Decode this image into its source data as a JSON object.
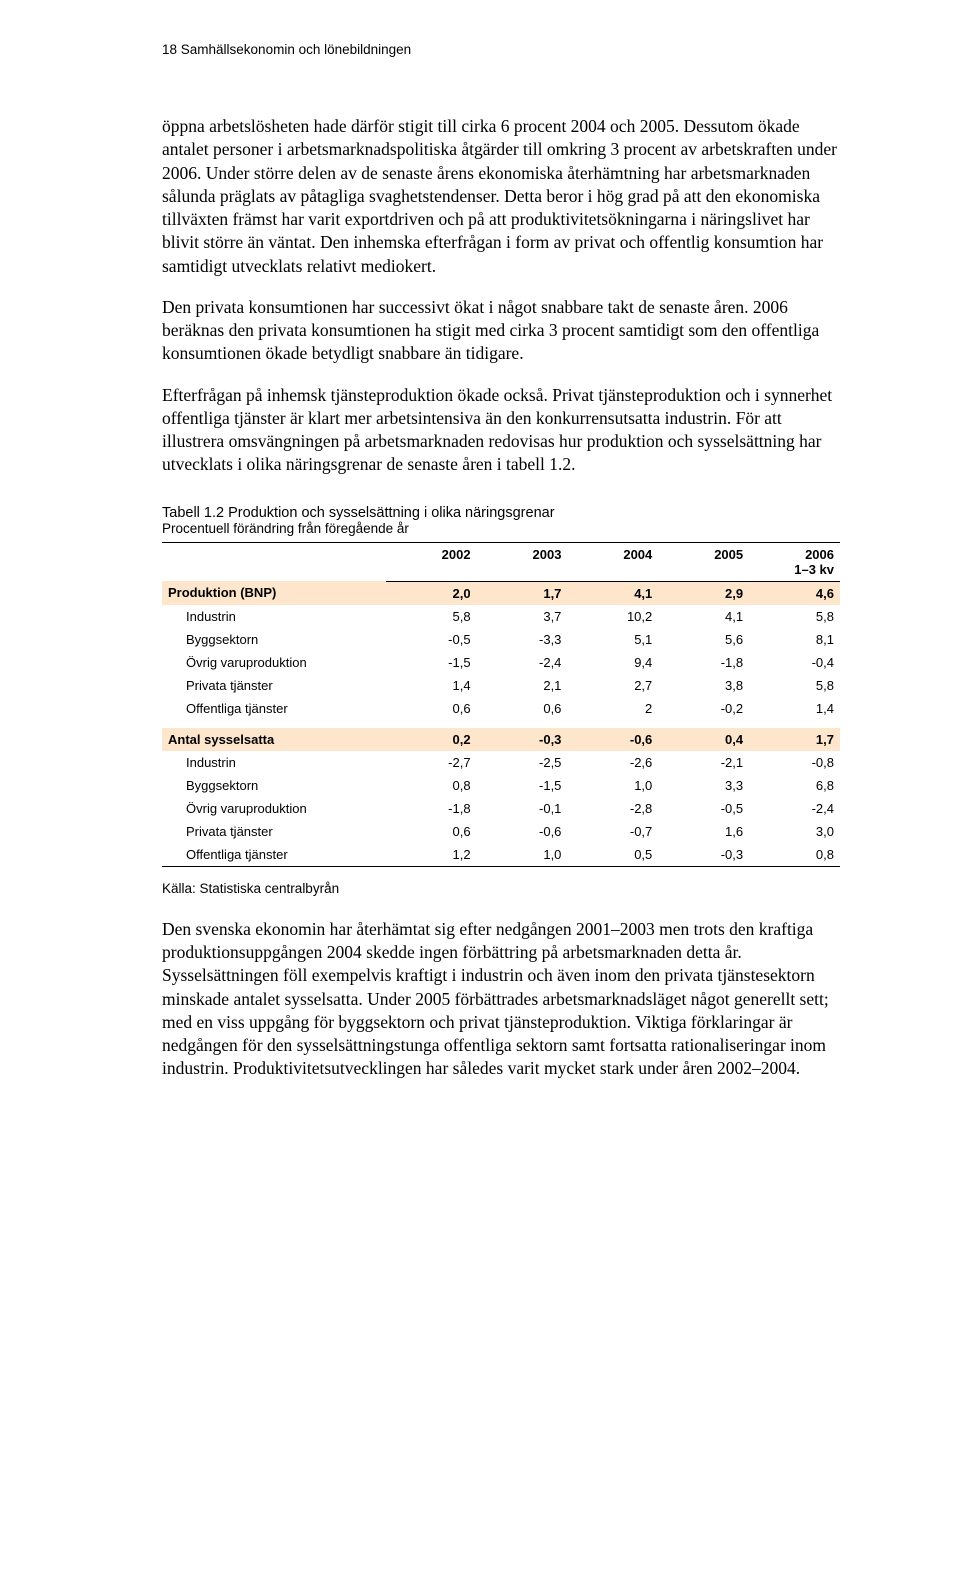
{
  "header": "18  Samhällsekonomin och lönebildningen",
  "paragraphs": {
    "p1": "öppna arbetslösheten hade därför stigit till cirka 6 procent 2004 och 2005. Dessutom ökade antalet personer i arbetsmarknadspolitiska åtgärder till omkring 3 procent av arbetskraften under 2006. Under större delen av de senaste årens ekonomiska återhämtning har arbetsmarknaden sålunda präglats av påtagliga svaghetstendenser. Detta beror i hög grad på att den ekonomiska tillväxten främst har varit exportdriven och på att produktivitetsökningarna i näringslivet har blivit större än väntat. Den inhemska efterfrågan i form av privat och offentlig konsumtion har samtidigt utvecklats relativt mediokert.",
    "p2": "Den privata konsumtionen har successivt ökat i något snabbare takt de senaste åren. 2006 beräknas den privata konsumtionen ha stigit med cirka 3 procent samtidigt som den offentliga konsumtionen ökade betydligt snabbare än tidigare.",
    "p3": "Efterfrågan på inhemsk tjänsteproduktion ökade också. Privat tjänsteproduktion och i synnerhet offentliga tjänster är klart mer arbetsintensiva än den konkurrensutsatta industrin. För att illustrera omsvängningen på arbetsmarknaden redovisas hur produktion och sysselsättning har utvecklats i olika näringsgrenar de senaste åren i tabell 1.2.",
    "p4": "Den svenska ekonomin har återhämtat sig efter nedgången 2001–2003 men trots den kraftiga produktionsuppgången 2004 skedde ingen förbättring på arbetsmarknaden detta år. Sysselsättningen föll exempelvis kraftigt i industrin och även inom den privata tjänstesektorn minskade antalet sysselsatta. Under 2005 förbättrades arbetsmarknadsläget något generellt sett; med en viss uppgång för byggsektorn och privat tjänsteproduktion. Viktiga förklaringar är nedgången för den sysselsättningstunga offentliga sektorn samt fortsatta rationaliseringar inom industrin. Produktivitetsutvecklingen har således varit mycket stark under åren 2002–2004."
  },
  "table": {
    "title": "Tabell 1.2  Produktion och sysselsättning i olika näringsgrenar",
    "subtitle": "Procentuell förändring från föregående år",
    "highlight_color": "#fde6cc",
    "columns": [
      "",
      "2002",
      "2003",
      "2004",
      "2005",
      "2006\n1–3 kv"
    ],
    "sections": [
      {
        "label": "Produktion (BNP)",
        "values": [
          "2,0",
          "1,7",
          "4,1",
          "2,9",
          "4,6"
        ],
        "rows": [
          {
            "label": "Industrin",
            "values": [
              "5,8",
              "3,7",
              "10,2",
              "4,1",
              "5,8"
            ]
          },
          {
            "label": "Byggsektorn",
            "values": [
              "-0,5",
              "-3,3",
              "5,1",
              "5,6",
              "8,1"
            ]
          },
          {
            "label": "Övrig varuproduktion",
            "values": [
              "-1,5",
              "-2,4",
              "9,4",
              "-1,8",
              "-0,4"
            ]
          },
          {
            "label": "Privata tjänster",
            "values": [
              "1,4",
              "2,1",
              "2,7",
              "3,8",
              "5,8"
            ]
          },
          {
            "label": "Offentliga tjänster",
            "values": [
              "0,6",
              "0,6",
              "2",
              "-0,2",
              "1,4"
            ]
          }
        ]
      },
      {
        "label": "Antal sysselsatta",
        "values": [
          "0,2",
          "-0,3",
          "-0,6",
          "0,4",
          "1,7"
        ],
        "rows": [
          {
            "label": "Industrin",
            "values": [
              "-2,7",
              "-2,5",
              "-2,6",
              "-2,1",
              "-0,8"
            ]
          },
          {
            "label": "Byggsektorn",
            "values": [
              "0,8",
              "-1,5",
              "1,0",
              "3,3",
              "6,8"
            ]
          },
          {
            "label": "Övrig varuproduktion",
            "values": [
              "-1,8",
              "-0,1",
              "-2,8",
              "-0,5",
              "-2,4"
            ]
          },
          {
            "label": "Privata tjänster",
            "values": [
              "0,6",
              "-0,6",
              "-0,7",
              "1,6",
              "3,0"
            ]
          },
          {
            "label": "Offentliga tjänster",
            "values": [
              "1,2",
              "1,0",
              "0,5",
              "-0,3",
              "0,8"
            ]
          }
        ]
      }
    ],
    "source": "Källa: Statistiska centralbyrån"
  }
}
